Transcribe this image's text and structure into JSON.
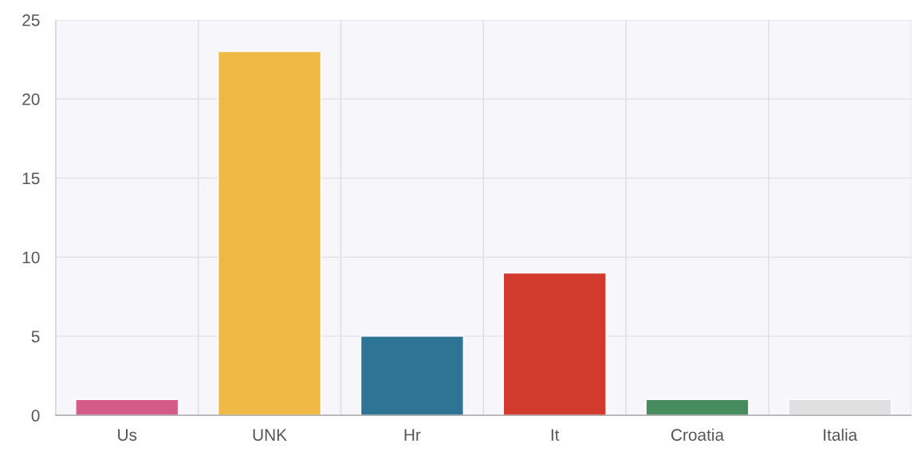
{
  "chart_data": {
    "type": "bar",
    "categories": [
      "Us",
      "UNK",
      "Hr",
      "It",
      "Croatia",
      "Italia"
    ],
    "values": [
      1,
      23,
      5,
      9,
      1,
      1
    ],
    "colors": [
      "#d45a87",
      "#f0b844",
      "#2e7595",
      "#d23a2e",
      "#468c5e",
      "#e0e0e3"
    ],
    "ylim": [
      0,
      25
    ],
    "yticks": [
      0,
      5,
      10,
      15,
      20,
      25
    ],
    "grid": true
  }
}
